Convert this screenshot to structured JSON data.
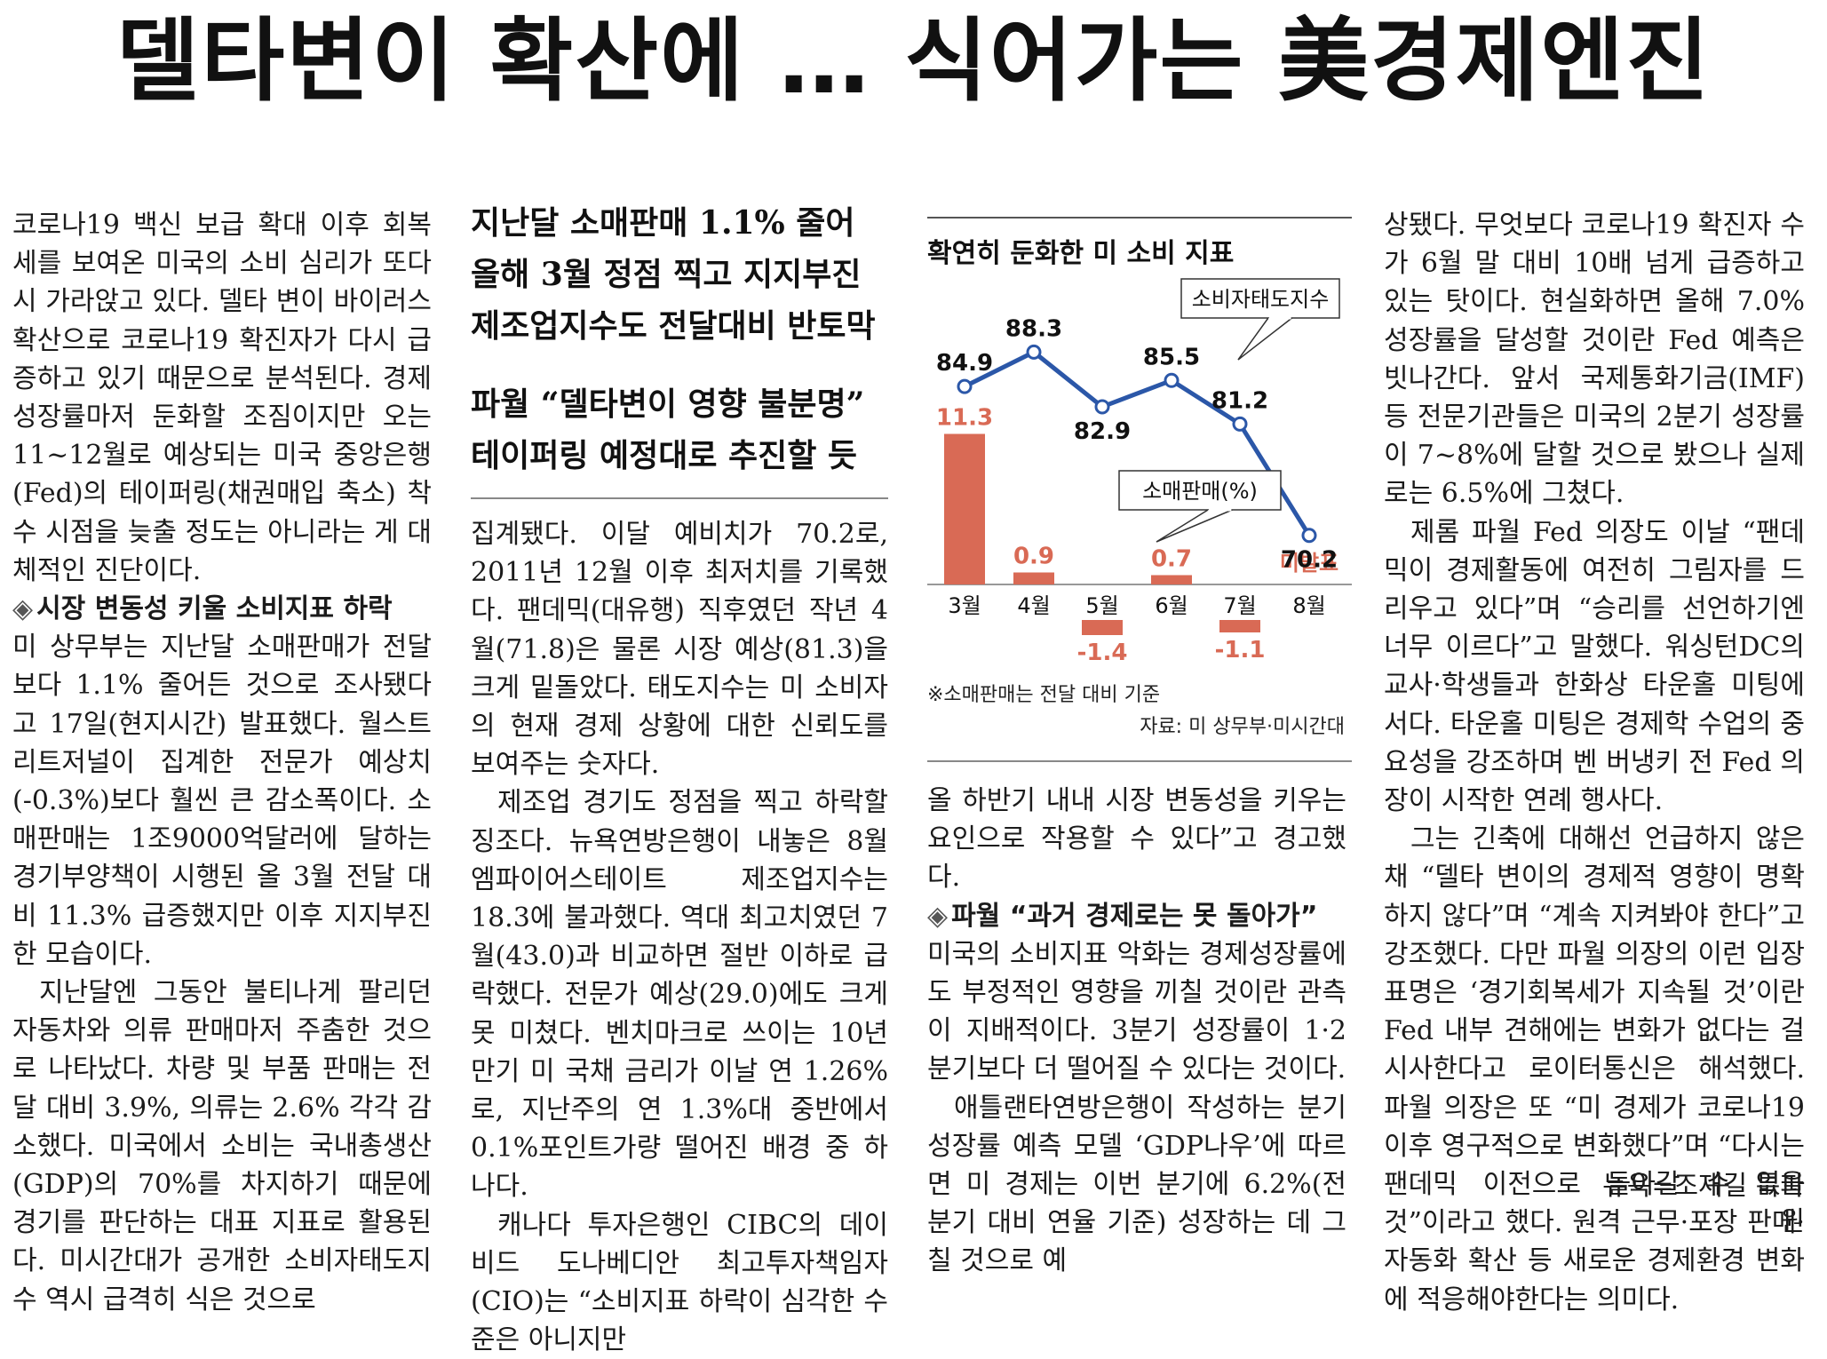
{
  "headline": "델타변이 확산에 … 식어가는 美경제엔진",
  "decks": [
    "지난달 소매판매 1.1% 줄어",
    "올해 3월 정점 찍고 지지부진",
    "제조업지수도 전달대비 반토막",
    "파월 “델타변이 영향 불분명”",
    "테이퍼링 예정대로 추진할 듯"
  ],
  "col1": [
    {
      "type": "p",
      "text": "코로나19 백신 보급 확대 이후 회복세를 보여온 미국의 소비 심리가 또다시 가라앉고 있다. 델타 변이 바이러스 확산으로 코로나19 확진자가 다시 급증하고 있기 때문으로 분석된다. 경제성장률마저 둔화할 조짐이지만 오는 11~12월로 예상되는 미국 중앙은행(Fed)의 테이퍼링(채권매입 축소) 착수 시점을 늦출 정도는 아니라는 게 대체적인 진단이다."
    },
    {
      "type": "sub",
      "mark": "◈",
      "text": "시장 변동성 키울 소비지표 하락"
    },
    {
      "type": "p",
      "text": "미 상무부는 지난달 소매판매가 전달보다 1.1% 줄어든 것으로 조사됐다고 17일(현지시간) 발표했다. 월스트리트저널이 집계한 전문가 예상치(-0.3%)보다 훨씬 큰 감소폭이다. 소매판매는 1조9000억달러에 달하는 경기부양책이 시행된 올 3월 전달 대비 11.3% 급증했지만 이후 지지부진한 모습이다."
    },
    {
      "type": "pi",
      "text": "지난달엔 그동안 불티나게 팔리던 자동차와 의류 판매마저 주춤한 것으로 나타났다. 차량 및 부품 판매는 전달 대비 3.9%, 의류는 2.6% 각각 감소했다. 미국에서 소비는 국내총생산(GDP)의 70%를 차지하기 때문에 경기를 판단하는 대표 지표로 활용된다. 미시간대가 공개한 소비자태도지수 역시 급격히 식은 것으로"
    }
  ],
  "col2": [
    {
      "type": "p",
      "text": "집계됐다. 이달 예비치가 70.2로, 2011년 12월 이후 최저치를 기록했다. 팬데믹(대유행) 직후였던 작년 4월(71.8)은 물론 시장 예상(81.3)을 크게 밑돌았다. 태도지수는 미 소비자의 현재 경제 상황에 대한 신뢰도를 보여주는 숫자다."
    },
    {
      "type": "pi",
      "text": "제조업 경기도 정점을 찍고 하락할 징조다. 뉴욕연방은행이 내놓은 8월 엠파이어스테이트 제조업지수는 18.3에 불과했다. 역대 최고치였던 7월(43.0)과 비교하면 절반 이하로 급락했다. 전문가 예상(29.0)에도 크게 못 미쳤다. 벤치마크로 쓰이는 10년 만기 미 국채 금리가 이날 연 1.26%로, 지난주의 연 1.3%대 중반에서 0.1%포인트가량 떨어진 배경 중 하나다."
    },
    {
      "type": "pi",
      "text": "캐나다 투자은행인 CIBC의 데이비드 도나베디안 최고투자책임자(CIO)는 “소비지표 하락이 심각한 수준은 아니지만"
    }
  ],
  "col3": [
    {
      "type": "p",
      "text": "올 하반기 내내 시장 변동성을 키우는 요인으로 작용할 수 있다”고 경고했다."
    },
    {
      "type": "sub",
      "mark": "◈",
      "text": "파월 “과거 경제로는 못 돌아가”"
    },
    {
      "type": "p",
      "text": "미국의 소비지표 악화는 경제성장률에도 부정적인 영향을 끼칠 것이란 관측이 지배적이다. 3분기 성장률이 1·2분기보다 더 떨어질 수 있다는 것이다."
    },
    {
      "type": "pi",
      "text": "애틀랜타연방은행이 작성하는 분기 성장률 예측 모델 ‘GDP나우’에 따르면 미 경제는 이번 분기에 6.2%(전 분기 대비 연율 기준) 성장하는 데 그칠 것으로 예"
    }
  ],
  "col4": [
    {
      "type": "p",
      "text": "상됐다. 무엇보다 코로나19 확진자 수가 6월 말 대비 10배 넘게 급증하고 있는 탓이다. 현실화하면 올해 7.0% 성장률을 달성할 것이란 Fed 예측은 빗나간다. 앞서 국제통화기금(IMF) 등 전문기관들은 미국의 2분기 성장률이 7~8%에 달할 것으로 봤으나 실제로는 6.5%에 그쳤다."
    },
    {
      "type": "pi",
      "text": "제롬 파월 Fed 의장도 이날 “팬데믹이 경제활동에 여전히 그림자를 드리우고 있다”며 “승리를 선언하기엔 너무 이르다”고 말했다. 워싱턴DC의 교사·학생들과 한화상 타운홀 미팅에서다. 타운홀 미팅은 경제학 수업의 중요성을 강조하며 벤 버냉키 전 Fed 의장이 시작한 연례 행사다."
    },
    {
      "type": "pi",
      "text": "그는 긴축에 대해선 언급하지 않은 채 “델타 변이의 경제적 영향이 명확하지 않다”며 “계속 지켜봐야 한다”고 강조했다. 다만 파월 의장의 이런 입장 표명은 ‘경기회복세가 지속될 것’이란 Fed 내부 견해에는 변화가 없다는 걸 시사한다고 로이터통신은 해석했다. 파월 의장은 또 “미 경제가 코로나19 이후 영구적으로 변화했다”며 “다시는 팬데믹 이전으로 돌아갈 수 없을 것”이라고 했다. 원격 근무·포장 판매·자동화 확산 등 새로운 경제환경 변화에 적응해야한다는 의미다."
    }
  ],
  "byline": "뉴욕=조재길 특파원",
  "colors": {
    "line": "#2b57a8",
    "bar": "#d96a55",
    "text": "#1b1b1b"
  },
  "chart_data": {
    "type": "bar+line",
    "title": "확연히 둔화한 미 소비 지표",
    "categories": [
      "3월",
      "4월",
      "5월",
      "6월",
      "7월",
      "8월"
    ],
    "series": [
      {
        "name": "소비자태도지수",
        "kind": "line",
        "values": [
          84.9,
          88.3,
          82.9,
          85.5,
          81.2,
          70.2
        ]
      },
      {
        "name": "소매판매(%)",
        "kind": "bar",
        "values": [
          11.3,
          0.9,
          -1.4,
          0.7,
          -1.1,
          null
        ],
        "missing_label": "미발표"
      }
    ],
    "note": "※소매판매는 전달 대비 기준",
    "source": "자료: 미 상무부·미시간대"
  }
}
